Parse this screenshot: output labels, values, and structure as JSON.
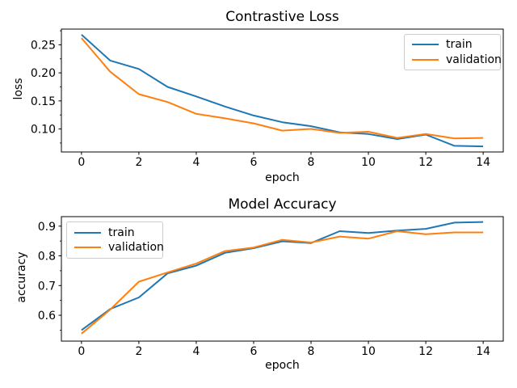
{
  "window": {
    "background": "#ffffff"
  },
  "colors": {
    "train": "#1f77b4",
    "validation": "#ff7f0e",
    "axis": "#000000",
    "text": "#000000",
    "legend_border": "#cccccc"
  },
  "chart_data": [
    {
      "type": "line",
      "title": "Contrastive Loss",
      "xlabel": "epoch",
      "ylabel": "loss",
      "x": [
        0,
        1,
        2,
        3,
        4,
        5,
        6,
        7,
        8,
        9,
        10,
        11,
        12,
        13,
        14
      ],
      "series": [
        {
          "name": "train",
          "color": "#1f77b4",
          "values": [
            0.268,
            0.222,
            0.207,
            0.175,
            0.158,
            0.14,
            0.124,
            0.112,
            0.105,
            0.094,
            0.091,
            0.082,
            0.09,
            0.07,
            0.069
          ]
        },
        {
          "name": "validation",
          "color": "#ff7f0e",
          "values": [
            0.262,
            0.202,
            0.162,
            0.148,
            0.127,
            0.119,
            0.11,
            0.097,
            0.1,
            0.093,
            0.095,
            0.084,
            0.091,
            0.083,
            0.084
          ]
        }
      ],
      "xlim": [
        -0.7,
        14.7
      ],
      "ylim": [
        0.059,
        0.278
      ],
      "xticks": [
        0,
        2,
        4,
        6,
        8,
        10,
        12,
        14
      ],
      "xtick_labels": [
        "0",
        "2",
        "4",
        "6",
        "8",
        "10",
        "12",
        "14"
      ],
      "yticks": [
        0.25,
        0.2,
        0.15,
        0.1
      ],
      "ytick_labels": [
        "0.25",
        "0.20",
        "0.15",
        "0.10"
      ],
      "yticks_minor": [
        0.275,
        0.225,
        0.175,
        0.125,
        0.075
      ],
      "grid": false,
      "legend": {
        "position": "upper right",
        "entries": [
          "train",
          "validation"
        ]
      }
    },
    {
      "type": "line",
      "title": "Model Accuracy",
      "xlabel": "epoch",
      "ylabel": "accuracy",
      "x": [
        0,
        1,
        2,
        3,
        4,
        5,
        6,
        7,
        8,
        9,
        10,
        11,
        12,
        13,
        14
      ],
      "series": [
        {
          "name": "train",
          "color": "#1f77b4",
          "values": [
            0.55,
            0.621,
            0.66,
            0.741,
            0.767,
            0.81,
            0.826,
            0.849,
            0.843,
            0.883,
            0.877,
            0.885,
            0.891,
            0.912,
            0.914
          ]
        },
        {
          "name": "validation",
          "color": "#ff7f0e",
          "values": [
            0.538,
            0.619,
            0.713,
            0.744,
            0.774,
            0.816,
            0.828,
            0.854,
            0.845,
            0.865,
            0.858,
            0.883,
            0.873,
            0.879,
            0.879
          ]
        }
      ],
      "xlim": [
        -0.7,
        14.7
      ],
      "ylim": [
        0.513,
        0.932
      ],
      "xticks": [
        0,
        2,
        4,
        6,
        8,
        10,
        12,
        14
      ],
      "xtick_labels": [
        "0",
        "2",
        "4",
        "6",
        "8",
        "10",
        "12",
        "14"
      ],
      "yticks": [
        0.9,
        0.8,
        0.7,
        0.6
      ],
      "ytick_labels": [
        "0.9",
        "0.8",
        "0.7",
        "0.6"
      ],
      "yticks_minor": [
        0.85,
        0.75,
        0.65,
        0.55
      ],
      "grid": false,
      "legend": {
        "position": "upper left",
        "entries": [
          "train",
          "validation"
        ]
      }
    }
  ]
}
